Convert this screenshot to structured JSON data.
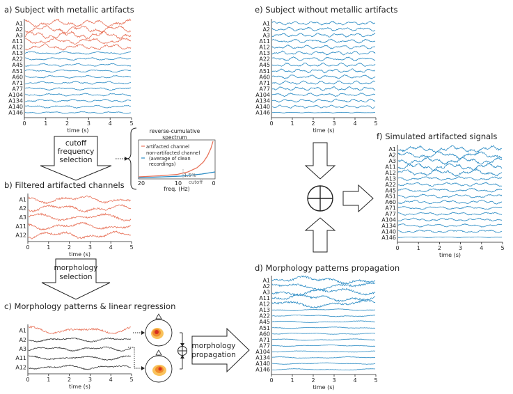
{
  "panels": {
    "a": {
      "title": "a) Subject with metallic artifacts",
      "channels": [
        "A1",
        "A2",
        "A3",
        "A11",
        "A12",
        "A13",
        "A22",
        "A45",
        "A51",
        "A60",
        "A71",
        "A77",
        "A104",
        "A134",
        "A140",
        "A146"
      ],
      "colors": [
        "red",
        "red",
        "red",
        "red",
        "red",
        "blue",
        "blue",
        "blue",
        "blue",
        "blue",
        "blue",
        "blue",
        "blue",
        "blue",
        "blue",
        "blue"
      ],
      "xticks": [
        "0",
        "1",
        "2",
        "3",
        "4",
        "5"
      ],
      "xlabel": "time (s)"
    },
    "b": {
      "title": "b) Filtered artifacted channels",
      "channels": [
        "A1",
        "A2",
        "A3",
        "A11",
        "A12"
      ],
      "colors": [
        "red",
        "red",
        "red",
        "red",
        "red"
      ],
      "xticks": [
        "0",
        "1",
        "2",
        "3",
        "4",
        "5"
      ],
      "xlabel": "time (s)"
    },
    "c": {
      "title": "c) Morphology patterns & linear regression",
      "channels": [
        "A1",
        "A2",
        "A3",
        "A11",
        "A12"
      ],
      "colors": [
        "red",
        "black",
        "black",
        "black",
        "black"
      ],
      "xticks": [
        "0",
        "1",
        "2",
        "3",
        "4",
        "5"
      ],
      "xlabel": "time (s)"
    },
    "d": {
      "title": "d) Morphology patterns propagation",
      "channels": [
        "A1",
        "A2",
        "A3",
        "A11",
        "A12",
        "A13",
        "A22",
        "A45",
        "A51",
        "A60",
        "A71",
        "A77",
        "A104",
        "A134",
        "A140",
        "A146"
      ],
      "colors": [
        "blue",
        "blue",
        "blue",
        "blue",
        "blue",
        "blue",
        "blue",
        "blue",
        "blue",
        "blue",
        "blue",
        "blue",
        "blue",
        "blue",
        "blue",
        "blue"
      ],
      "xticks": [
        "0",
        "1",
        "2",
        "3",
        "4",
        "5"
      ],
      "xlabel": "time (s)"
    },
    "e": {
      "title": "e) Subject without metallic artifacts",
      "channels": [
        "A1",
        "A2",
        "A3",
        "A11",
        "A12",
        "A13",
        "A22",
        "A45",
        "A51",
        "A60",
        "A71",
        "A77",
        "A104",
        "A134",
        "A140",
        "A146"
      ],
      "colors": [
        "blue",
        "blue",
        "blue",
        "blue",
        "blue",
        "blue",
        "blue",
        "blue",
        "blue",
        "blue",
        "blue",
        "blue",
        "blue",
        "blue",
        "blue",
        "blue"
      ],
      "xticks": [
        "0",
        "1",
        "2",
        "3",
        "4",
        "5"
      ],
      "xlabel": "time (s)"
    },
    "f": {
      "title": "f) Simulated artifacted signals",
      "channels": [
        "A1",
        "A2",
        "A3",
        "A11",
        "A12",
        "A13",
        "A22",
        "A45",
        "A51",
        "A60",
        "A71",
        "A77",
        "A104",
        "A134",
        "A140",
        "A146"
      ],
      "colors": [
        "blue",
        "blue",
        "blue",
        "blue",
        "blue",
        "blue",
        "blue",
        "blue",
        "blue",
        "blue",
        "blue",
        "blue",
        "blue",
        "blue",
        "blue",
        "blue"
      ],
      "xticks": [
        "0",
        "1",
        "2",
        "3",
        "4",
        "5"
      ],
      "xlabel": "time (s)"
    }
  },
  "arrows": {
    "cutoff": [
      "cutoff",
      "frequency",
      "selection"
    ],
    "morphology_selection": [
      "morphology",
      "selection"
    ],
    "propagation": [
      "morphology",
      "propagation"
    ]
  },
  "spectrum": {
    "title": [
      "reverse-cumulative",
      "spectrum"
    ],
    "legend_artifacted": "artifacted channel",
    "legend_clean": [
      "non-artifacted channel",
      "(average of clean",
      "recordings)"
    ],
    "annotation_pct": "1.5%",
    "annotation_cutoff": "cutoff",
    "xticks": [
      "20",
      "10",
      "0"
    ],
    "xlabel": "freq. (Hz)"
  },
  "colors": {
    "red": "#e8735a",
    "blue": "#2a8bc4",
    "black": "#333333",
    "amp": "#f07d10"
  }
}
